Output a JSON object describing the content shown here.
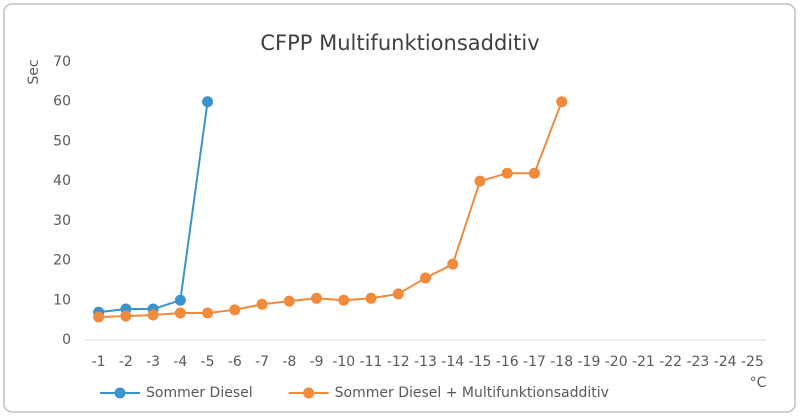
{
  "chart_data": {
    "type": "line",
    "title": "CFPP Multifunktionsadditiv",
    "y_label": "Sec",
    "x_label": "°C",
    "categories": [
      "-1",
      "-2",
      "-3",
      "-4",
      "-5",
      "-6",
      "-7",
      "-8",
      "-9",
      "-10",
      "-11",
      "-12",
      "-13",
      "-14",
      "-15",
      "-16",
      "-17",
      "-18",
      "-19",
      "-20",
      "-21",
      "-22",
      "-23",
      "-24",
      "-25"
    ],
    "series": [
      {
        "name": "Sommer Diesel",
        "color": "#3a93cc",
        "values": [
          7,
          7.8,
          7.8,
          10,
          60,
          null,
          null,
          null,
          null,
          null,
          null,
          null,
          null,
          null,
          null,
          null,
          null,
          null,
          null,
          null,
          null,
          null,
          null,
          null,
          null
        ]
      },
      {
        "name": "Sommer Diesel + Multifunktionsadditiv",
        "color": "#f08a3c",
        "values": [
          5.8,
          6,
          6.3,
          6.8,
          6.8,
          7.6,
          9,
          9.8,
          10.5,
          10,
          10.5,
          11.6,
          15.6,
          19.1,
          40,
          42,
          42,
          60,
          null,
          null,
          null,
          null,
          null,
          null,
          null
        ]
      }
    ],
    "ylim": [
      0,
      70
    ],
    "yticks": [
      0,
      10,
      20,
      30,
      40,
      50,
      60,
      70
    ],
    "grid": false,
    "legend": "bottom-left"
  }
}
